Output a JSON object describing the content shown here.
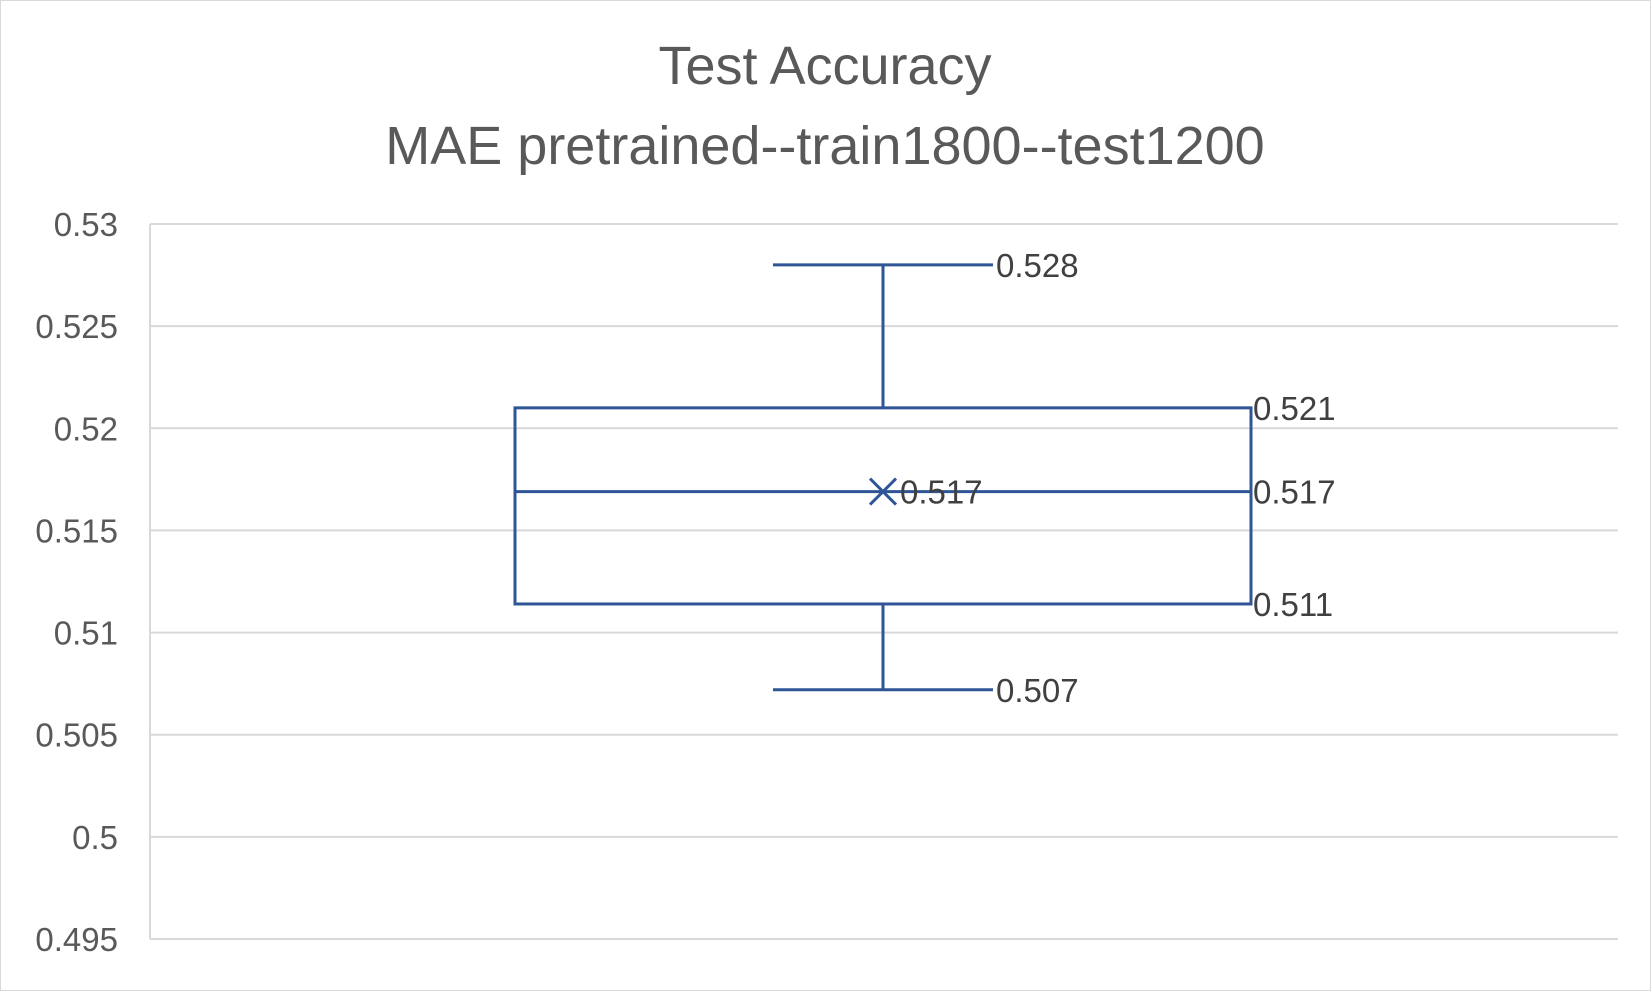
{
  "chart_data": {
    "type": "box",
    "title": "Test Accuracy",
    "subtitle": "MAE pretrained--train1800--test1200",
    "xlabel": "",
    "ylabel": "",
    "ylim": [
      0.495,
      0.53
    ],
    "y_ticks": [
      "0.53",
      "0.525",
      "0.52",
      "0.515",
      "0.51",
      "0.505",
      "0.5",
      "0.495"
    ],
    "y_tick_values": [
      0.53,
      0.525,
      0.52,
      0.515,
      0.51,
      0.505,
      0.5,
      0.495
    ],
    "grid": true,
    "series": [
      {
        "min": 0.5072,
        "q1": 0.5114,
        "median": 0.5169,
        "q3": 0.521,
        "max": 0.528,
        "mean": 0.5169,
        "labels": {
          "max": "0.528",
          "q3": "0.521",
          "median": "0.517",
          "mean": "0.517",
          "q1": "0.511",
          "min": "0.507"
        }
      }
    ],
    "colors": {
      "box": "#2f5597",
      "grid": "#d9d9d9",
      "text": "#595959"
    }
  }
}
